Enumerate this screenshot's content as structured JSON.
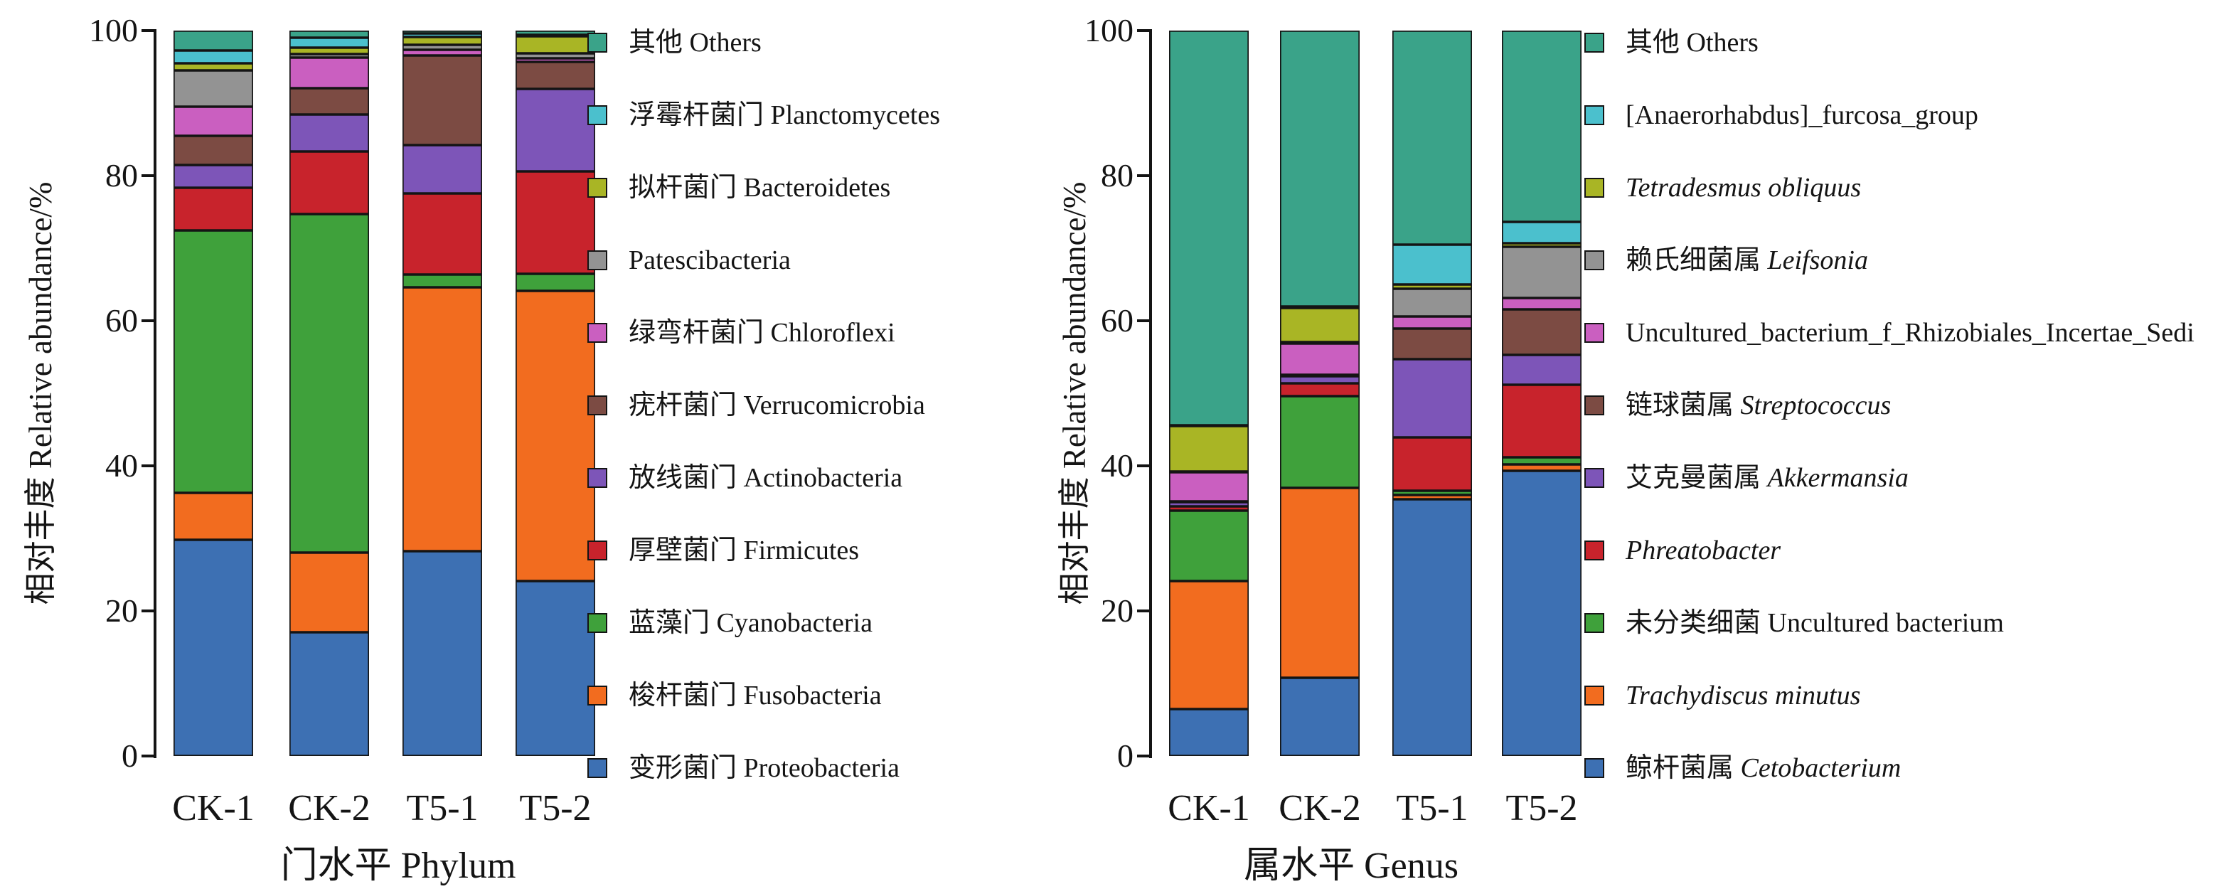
{
  "figure": {
    "y_axis_label": "相对丰度 Relative abundance/%",
    "y_ticks": [
      0,
      20,
      40,
      60,
      80,
      100
    ],
    "categories": [
      "CK-1",
      "CK-2",
      "T5-1",
      "T5-2"
    ]
  },
  "chart_data": [
    {
      "type": "bar",
      "stacked": true,
      "title": "门水平 Phylum",
      "xlabel": "门水平 Phylum",
      "ylabel": "相对丰度 Relative abundance/%",
      "ylim": [
        0,
        100
      ],
      "grid": false,
      "legend_position": "right",
      "categories": [
        "CK-1",
        "CK-2",
        "T5-1",
        "T5-2"
      ],
      "series": [
        {
          "label_zh": "变形菌门",
          "label_la": "Proteobacteria",
          "italic": false,
          "color": "#3d70b3",
          "values": [
            29.8,
            17.1,
            28.2,
            24.1
          ]
        },
        {
          "label_zh": "梭杆菌门",
          "label_la": "Fusobacteria",
          "italic": false,
          "color": "#f26c1f",
          "values": [
            6.5,
            10.9,
            36.4,
            40.0
          ]
        },
        {
          "label_zh": "蓝藻门",
          "label_la": "Cyanobacteria",
          "italic": false,
          "color": "#3fa13b",
          "values": [
            36.2,
            46.7,
            1.8,
            2.4
          ]
        },
        {
          "label_zh": "厚壁菌门",
          "label_la": "Firmicutes",
          "italic": false,
          "color": "#c8232c",
          "values": [
            5.8,
            8.6,
            11.2,
            14.1
          ]
        },
        {
          "label_zh": "放线菌门",
          "label_la": "Actinobacteria",
          "italic": false,
          "color": "#7d55b8",
          "values": [
            3.2,
            5.1,
            6.6,
            11.4
          ]
        },
        {
          "label_zh": "疣杆菌门",
          "label_la": "Verrucomicrobia",
          "italic": false,
          "color": "#7c4b43",
          "values": [
            4.0,
            3.7,
            12.4,
            3.7
          ]
        },
        {
          "label_zh": "绿弯杆菌门",
          "label_la": "Chloroflexi",
          "italic": false,
          "color": "#ca5fc0",
          "values": [
            4.0,
            4.2,
            0.8,
            0.5
          ]
        },
        {
          "label_zh": "",
          "label_la": "Patescibacteria",
          "italic": false,
          "color": "#939393",
          "values": [
            5.0,
            0.5,
            0.6,
            0.7
          ]
        },
        {
          "label_zh": "拟杆菌门",
          "label_la": "Bacteroidetes",
          "italic": false,
          "color": "#a9b525",
          "values": [
            1.0,
            0.9,
            1.1,
            2.3
          ]
        },
        {
          "label_zh": "浮霉杆菌门",
          "label_la": "Planctomycetes",
          "italic": false,
          "color": "#4bc0cd",
          "values": [
            1.8,
            1.3,
            0.5,
            0.2
          ]
        },
        {
          "label_zh": "其他",
          "label_la": "Others",
          "italic": false,
          "color": "#3aa389",
          "values": [
            2.7,
            1.0,
            0.4,
            0.6
          ]
        }
      ]
    },
    {
      "type": "bar",
      "stacked": true,
      "title": "属水平 Genus",
      "xlabel": "属水平 Genus",
      "ylabel": "相对丰度 Relative abundance/%",
      "ylim": [
        0,
        100
      ],
      "grid": false,
      "legend_position": "right",
      "categories": [
        "CK-1",
        "CK-2",
        "T5-1",
        "T5-2"
      ],
      "series": [
        {
          "label_zh": "鲸杆菌属",
          "label_la": "Cetobacterium",
          "italic": true,
          "color": "#3d70b3",
          "values": [
            6.5,
            10.8,
            35.4,
            39.3
          ]
        },
        {
          "label_zh": "",
          "label_la": "Trachydiscus minutus",
          "italic": true,
          "color": "#f26c1f",
          "values": [
            17.6,
            26.2,
            0.6,
            0.9
          ]
        },
        {
          "label_zh": "未分类细菌",
          "label_la": "Uncultured bacterium",
          "italic": false,
          "color": "#3fa13b",
          "values": [
            9.7,
            12.6,
            0.6,
            1.0
          ]
        },
        {
          "label_zh": "",
          "label_la": "Phreatobacter",
          "italic": true,
          "color": "#c8232c",
          "values": [
            0.6,
            1.8,
            7.3,
            10.0
          ]
        },
        {
          "label_zh": "艾克曼菌属",
          "label_la": "Akkermansia",
          "italic": true,
          "color": "#7d55b8",
          "values": [
            0.6,
            1.0,
            10.8,
            4.1
          ]
        },
        {
          "label_zh": "链球菌属",
          "label_la": "Streptococcus",
          "italic": true,
          "color": "#7c4b43",
          "values": [
            0.1,
            0.2,
            4.2,
            6.3
          ]
        },
        {
          "label_zh": "",
          "label_la": "Uncultured_bacterium_f_Rhizobiales_Incertae_Sedi",
          "italic": false,
          "color": "#ca5fc0",
          "values": [
            4.0,
            4.3,
            1.7,
            1.5
          ]
        },
        {
          "label_zh": "赖氏细菌属",
          "label_la": "Leifsonia",
          "italic": true,
          "color": "#939393",
          "values": [
            0.1,
            0.2,
            3.8,
            7.1
          ]
        },
        {
          "label_zh": "",
          "label_la": "Tetradesmus obliquus",
          "italic": true,
          "color": "#a9b525",
          "values": [
            6.3,
            4.7,
            0.6,
            0.5
          ]
        },
        {
          "label_zh": "",
          "label_la": "[Anaerorhabdus]_furcosa_group",
          "italic": false,
          "color": "#4bc0cd",
          "values": [
            0.1,
            0.2,
            5.5,
            2.9
          ]
        },
        {
          "label_zh": "其他",
          "label_la": "Others",
          "italic": false,
          "color": "#3aa389",
          "values": [
            54.4,
            38.0,
            29.5,
            26.4
          ]
        }
      ]
    }
  ]
}
